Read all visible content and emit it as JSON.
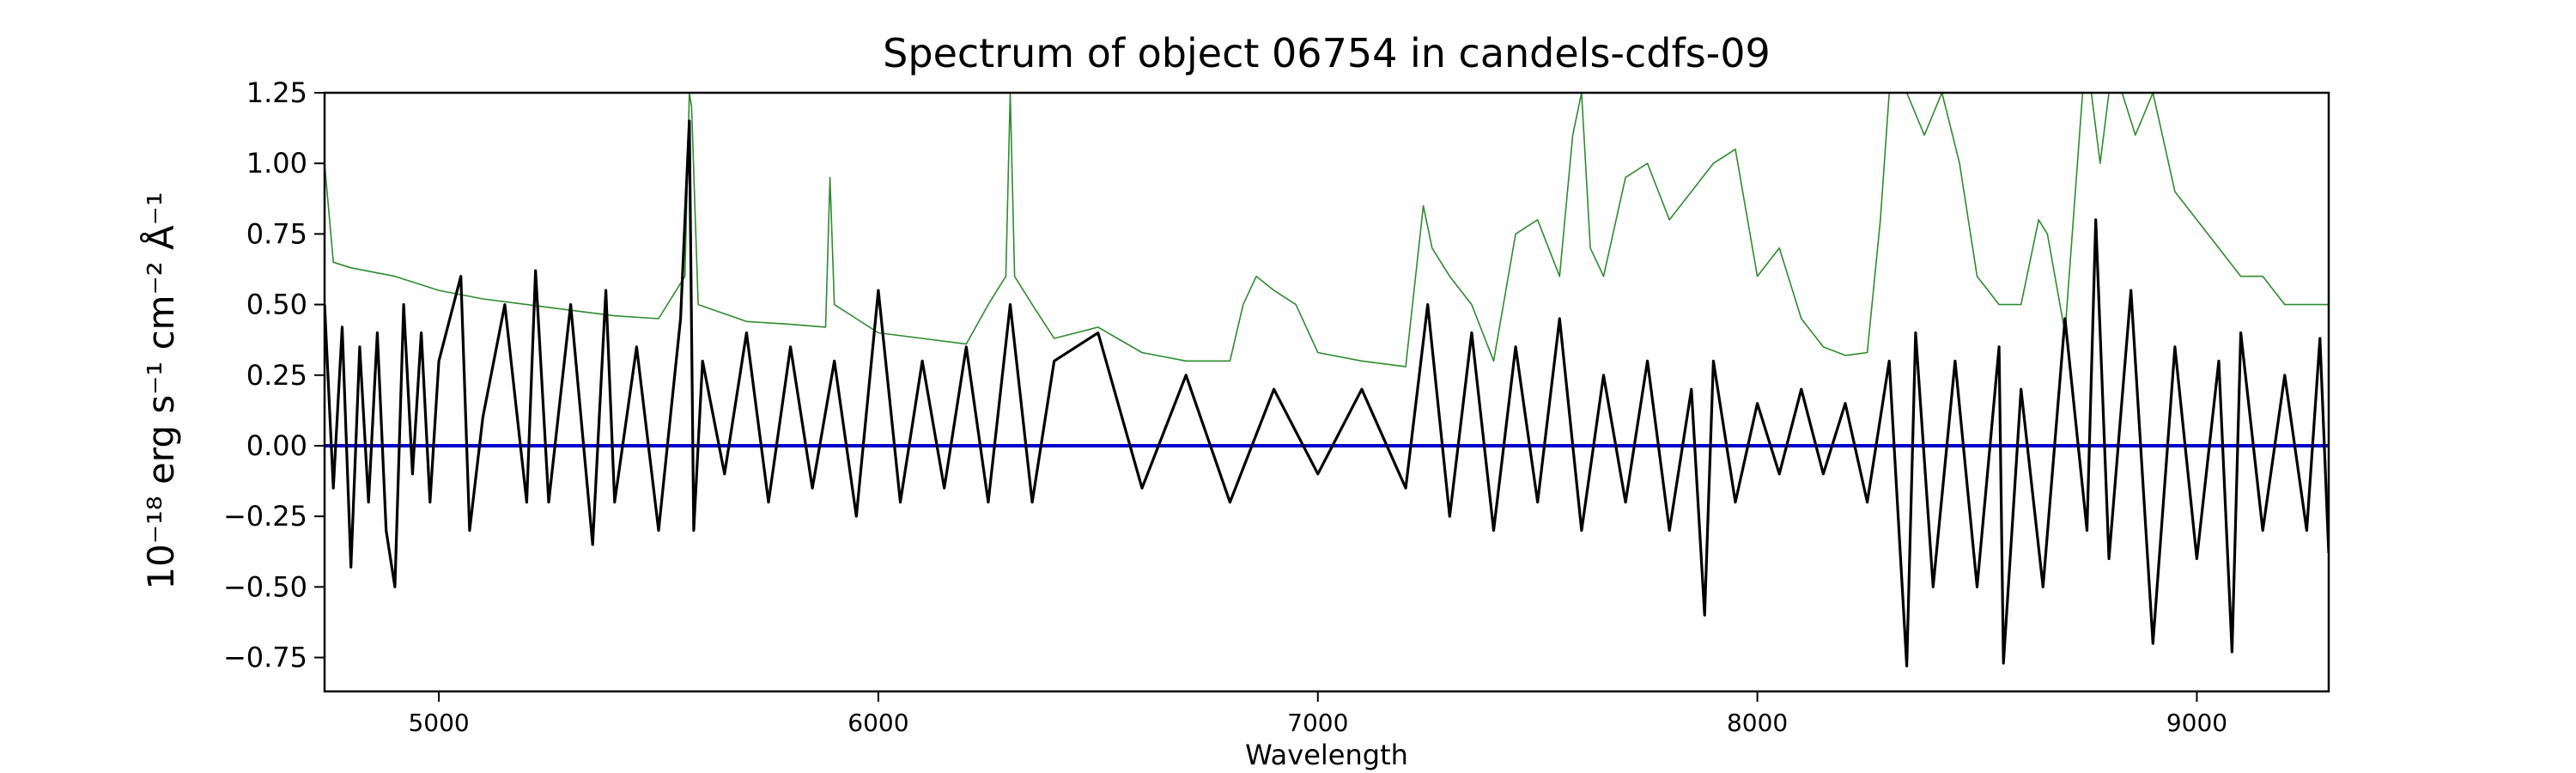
{
  "chart_data": {
    "type": "line",
    "title": "Spectrum of object 06754 in candels-cdfs-09",
    "xlabel": "Wavelength",
    "ylabel": "10⁻¹⁸ erg s⁻¹ cm⁻² Å⁻¹",
    "xlim": [
      4740,
      9300
    ],
    "ylim": [
      -0.87,
      1.25
    ],
    "xticks": [
      5000,
      6000,
      7000,
      8000,
      9000
    ],
    "xtick_labels": [
      "5000",
      "6000",
      "7000",
      "8000",
      "9000"
    ],
    "yticks": [
      -0.75,
      -0.5,
      -0.25,
      0.0,
      0.25,
      0.5,
      0.75,
      1.0,
      1.25
    ],
    "ytick_labels": [
      "−0.75",
      "−0.50",
      "−0.25",
      "0.00",
      "0.25",
      "0.50",
      "0.75",
      "1.00",
      "1.25"
    ],
    "grid": false,
    "series": [
      {
        "role": "error",
        "color": "#2e8b2e",
        "x": [
          4740,
          4760,
          4800,
          4900,
          5000,
          5100,
          5200,
          5300,
          5400,
          5500,
          5560,
          5570,
          5575,
          5590,
          5700,
          5800,
          5880,
          5890,
          5900,
          5950,
          6000,
          6100,
          6200,
          6250,
          6290,
          6300,
          6310,
          6350,
          6400,
          6500,
          6600,
          6700,
          6800,
          6830,
          6860,
          6900,
          6950,
          7000,
          7100,
          7200,
          7240,
          7260,
          7300,
          7350,
          7400,
          7450,
          7500,
          7550,
          7580,
          7600,
          7620,
          7650,
          7700,
          7750,
          7800,
          7850,
          7900,
          7950,
          8000,
          8050,
          8100,
          8150,
          8200,
          8250,
          8280,
          8300,
          8340,
          8380,
          8420,
          8460,
          8500,
          8550,
          8600,
          8640,
          8660,
          8700,
          8740,
          8760,
          8780,
          8800,
          8830,
          8860,
          8900,
          8950,
          9000,
          9050,
          9100,
          9150,
          9200,
          9250,
          9300
        ],
        "y": [
          1.0,
          0.65,
          0.63,
          0.6,
          0.55,
          0.52,
          0.5,
          0.48,
          0.46,
          0.45,
          0.6,
          1.25,
          1.2,
          0.5,
          0.44,
          0.43,
          0.42,
          0.95,
          0.5,
          0.45,
          0.4,
          0.38,
          0.36,
          0.5,
          0.6,
          1.25,
          0.6,
          0.5,
          0.38,
          0.42,
          0.33,
          0.3,
          0.3,
          0.5,
          0.6,
          0.55,
          0.5,
          0.33,
          0.3,
          0.28,
          0.85,
          0.7,
          0.6,
          0.5,
          0.3,
          0.75,
          0.8,
          0.6,
          1.1,
          1.25,
          0.7,
          0.6,
          0.95,
          1.0,
          0.8,
          0.9,
          1.0,
          1.05,
          0.6,
          0.7,
          0.45,
          0.35,
          0.32,
          0.33,
          0.8,
          1.25,
          1.25,
          1.1,
          1.25,
          1.0,
          0.6,
          0.5,
          0.5,
          0.8,
          0.75,
          0.4,
          1.25,
          1.25,
          1.0,
          1.25,
          1.25,
          1.1,
          1.25,
          0.9,
          0.8,
          0.7,
          0.6,
          0.6,
          0.5,
          0.5,
          0.5
        ]
      },
      {
        "role": "flux",
        "color": "#000000",
        "x": [
          4740,
          4760,
          4780,
          4800,
          4820,
          4840,
          4860,
          4880,
          4900,
          4920,
          4940,
          4960,
          4980,
          5000,
          5050,
          5070,
          5100,
          5150,
          5200,
          5220,
          5250,
          5300,
          5350,
          5380,
          5400,
          5450,
          5500,
          5550,
          5570,
          5580,
          5600,
          5650,
          5700,
          5750,
          5800,
          5850,
          5900,
          5950,
          6000,
          6050,
          6100,
          6150,
          6200,
          6250,
          6300,
          6350,
          6400,
          6500,
          6600,
          6700,
          6800,
          6900,
          7000,
          7100,
          7200,
          7250,
          7300,
          7350,
          7400,
          7450,
          7500,
          7550,
          7600,
          7650,
          7700,
          7750,
          7800,
          7850,
          7880,
          7900,
          7950,
          8000,
          8050,
          8100,
          8150,
          8200,
          8250,
          8300,
          8340,
          8360,
          8400,
          8450,
          8500,
          8550,
          8560,
          8600,
          8650,
          8700,
          8750,
          8770,
          8800,
          8850,
          8900,
          8950,
          9000,
          9050,
          9080,
          9100,
          9150,
          9200,
          9250,
          9280,
          9300
        ],
        "y": [
          0.5,
          -0.15,
          0.42,
          -0.43,
          0.35,
          -0.2,
          0.4,
          -0.3,
          -0.5,
          0.5,
          -0.1,
          0.4,
          -0.2,
          0.3,
          0.6,
          -0.3,
          0.1,
          0.5,
          -0.2,
          0.62,
          -0.2,
          0.5,
          -0.35,
          0.55,
          -0.2,
          0.35,
          -0.3,
          0.45,
          1.15,
          -0.3,
          0.3,
          -0.1,
          0.4,
          -0.2,
          0.35,
          -0.15,
          0.3,
          -0.25,
          0.55,
          -0.2,
          0.3,
          -0.15,
          0.35,
          -0.2,
          0.5,
          -0.2,
          0.3,
          0.4,
          -0.15,
          0.25,
          -0.2,
          0.2,
          -0.1,
          0.2,
          -0.15,
          0.5,
          -0.25,
          0.4,
          -0.3,
          0.35,
          -0.2,
          0.45,
          -0.3,
          0.25,
          -0.2,
          0.3,
          -0.3,
          0.2,
          -0.6,
          0.3,
          -0.2,
          0.15,
          -0.1,
          0.2,
          -0.1,
          0.15,
          -0.2,
          0.3,
          -0.78,
          0.4,
          -0.5,
          0.3,
          -0.5,
          0.35,
          -0.77,
          0.2,
          -0.5,
          0.45,
          -0.3,
          0.8,
          -0.4,
          0.55,
          -0.7,
          0.35,
          -0.4,
          0.3,
          -0.73,
          0.4,
          -0.3,
          0.25,
          -0.3,
          0.38,
          -0.38
        ]
      },
      {
        "role": "zero",
        "color": "#0000cc",
        "x": [
          4740,
          9300
        ],
        "y": [
          0.0,
          0.0
        ]
      }
    ]
  }
}
